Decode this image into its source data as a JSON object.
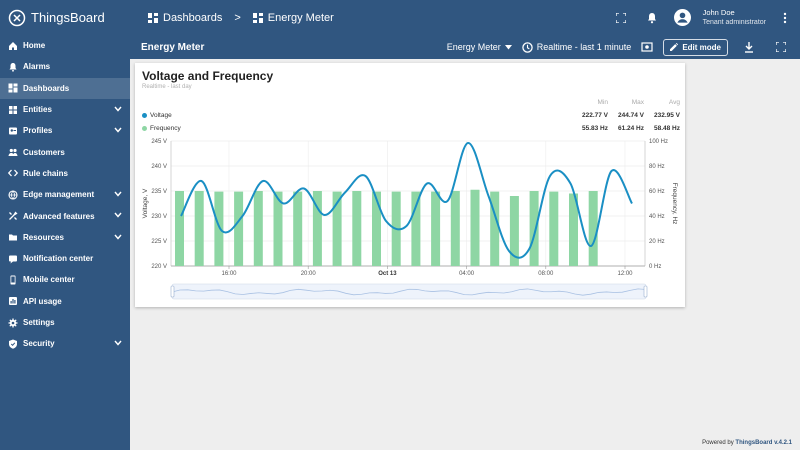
{
  "app": {
    "name": "ThingsBoard"
  },
  "breadcrumb": {
    "dashboards": "Dashboards",
    "separator": ">",
    "current": "Energy Meter"
  },
  "user": {
    "name": "John Doe",
    "role": "Tenant administrator"
  },
  "sidebar": {
    "items": [
      {
        "label": "Home",
        "icon": "home-icon"
      },
      {
        "label": "Alarms",
        "icon": "alarm-icon"
      },
      {
        "label": "Dashboards",
        "icon": "dashboard-icon",
        "active": true
      },
      {
        "label": "Entities",
        "icon": "entities-icon",
        "expandable": true
      },
      {
        "label": "Profiles",
        "icon": "profiles-icon",
        "expandable": true
      },
      {
        "label": "Customers",
        "icon": "customers-icon"
      },
      {
        "label": "Rule chains",
        "icon": "rule-chain-icon"
      },
      {
        "label": "Edge management",
        "icon": "edge-icon",
        "expandable": true
      },
      {
        "label": "Advanced features",
        "icon": "advanced-icon",
        "expandable": true
      },
      {
        "label": "Resources",
        "icon": "resources-icon",
        "expandable": true
      },
      {
        "label": "Notification center",
        "icon": "notification-icon"
      },
      {
        "label": "Mobile center",
        "icon": "mobile-icon"
      },
      {
        "label": "API usage",
        "icon": "api-usage-icon"
      },
      {
        "label": "Settings",
        "icon": "settings-icon"
      },
      {
        "label": "Security",
        "icon": "security-icon",
        "expandable": true
      }
    ]
  },
  "toolbar": {
    "title": "Energy Meter",
    "state": "Energy Meter",
    "timewindow": "Realtime - last 1 minute",
    "edit_label": "Edit mode"
  },
  "widget": {
    "title": "Voltage and Frequency",
    "subtitle": "Realtime - last day",
    "legend": {
      "headers": [
        "Min",
        "Max",
        "Avg"
      ],
      "rows": [
        {
          "name": "Voltage",
          "color": "#1a8fc4",
          "min": "222.77 V",
          "max": "244.74 V",
          "avg": "232.95 V"
        },
        {
          "name": "Frequency",
          "color": "#8ed6a4",
          "min": "55.83 Hz",
          "max": "61.24 Hz",
          "avg": "58.48 Hz"
        }
      ]
    }
  },
  "chart_data": {
    "type": "bar",
    "x_tick_labels": [
      "16:00",
      "20:00",
      "Oct 13",
      "04:00",
      "08:00",
      "12:00"
    ],
    "y_left": {
      "label": "Voltage, V",
      "ylim": [
        220,
        245
      ],
      "ticks": [
        "220 V",
        "225 V",
        "230 V",
        "235 V",
        "240 V",
        "245 V"
      ]
    },
    "y_right": {
      "label": "Frequency, Hz",
      "ylim": [
        0,
        100
      ],
      "ticks": [
        "0 Hz",
        "20 Hz",
        "40 Hz",
        "60 Hz",
        "80 Hz",
        "100 Hz"
      ]
    },
    "series": [
      {
        "name": "Frequency",
        "type": "bar",
        "axis": "right",
        "color": "#8ed6a4",
        "values": [
          60,
          60,
          59.5,
          59.5,
          60,
          59.5,
          59.5,
          60,
          59.5,
          60,
          59.5,
          59.5,
          59.5,
          59.5,
          60,
          61,
          59.5,
          56,
          60,
          59.5,
          58,
          60
        ]
      },
      {
        "name": "Voltage",
        "type": "line",
        "axis": "left",
        "color": "#1a8fc4",
        "values": [
          230,
          237,
          227,
          230,
          237,
          232.5,
          235.5,
          230.2,
          234.7,
          238,
          229,
          228,
          236.5,
          233,
          244.6,
          234,
          223,
          223.5,
          238,
          236.5,
          224,
          239,
          232.5
        ]
      }
    ],
    "grid": true
  },
  "footer": {
    "prefix": "Powered by",
    "link": "ThingsBoard v.4.2.1"
  }
}
